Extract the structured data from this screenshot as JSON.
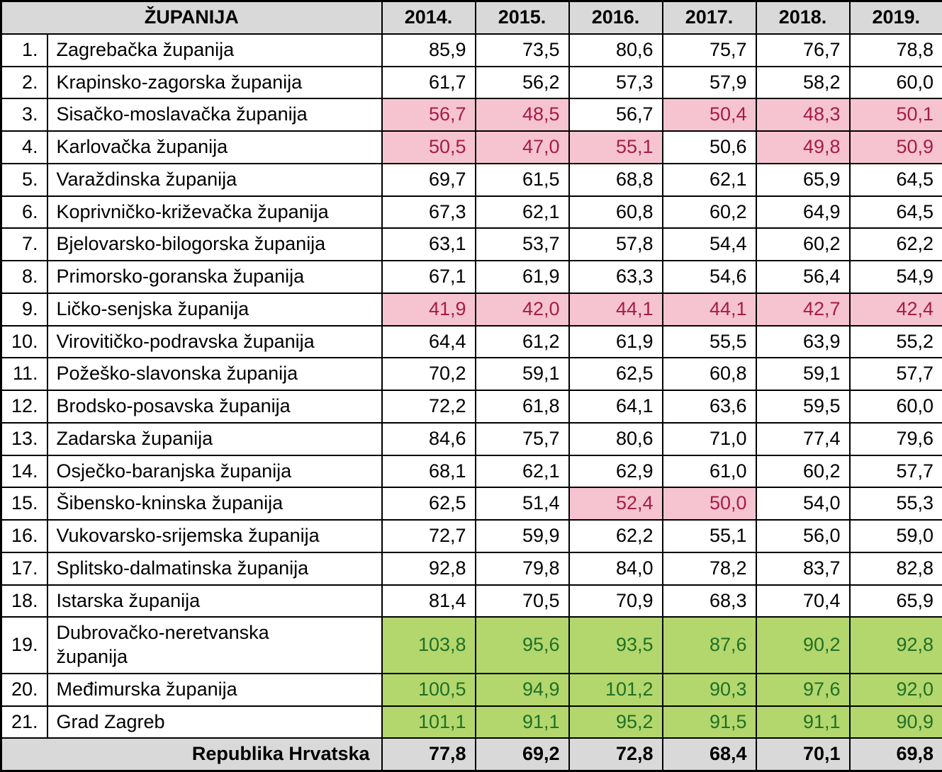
{
  "colors": {
    "header_bg": "#d9d9d9",
    "footer_bg": "#d9d9d9",
    "low_bg": "#f6c4d1",
    "low_text": "#a61c45",
    "high_bg": "#b3d76d",
    "high_text": "#1f7026",
    "border": "#000000"
  },
  "table": {
    "header": {
      "county": "ŽUPANIJA",
      "years": [
        "2014.",
        "2015.",
        "2016.",
        "2017.",
        "2018.",
        "2019."
      ]
    },
    "rows": [
      {
        "num": "1.",
        "name": "Zagrebačka županija",
        "values": [
          "85,9",
          "73,5",
          "80,6",
          "75,7",
          "76,7",
          "78,8"
        ],
        "highlights": [
          "",
          "",
          "",
          "",
          "",
          ""
        ]
      },
      {
        "num": "2.",
        "name": "Krapinsko-zagorska županija",
        "values": [
          "61,7",
          "56,2",
          "57,3",
          "57,9",
          "58,2",
          "60,0"
        ],
        "highlights": [
          "",
          "",
          "",
          "",
          "",
          ""
        ]
      },
      {
        "num": "3.",
        "name": "Sisačko-moslavačka županija",
        "values": [
          "56,7",
          "48,5",
          "56,7",
          "50,4",
          "48,3",
          "50,1"
        ],
        "highlights": [
          "low",
          "low",
          "",
          "low",
          "low",
          "low"
        ]
      },
      {
        "num": "4.",
        "name": "Karlovačka županija",
        "values": [
          "50,5",
          "47,0",
          "55,1",
          "50,6",
          "49,8",
          "50,9"
        ],
        "highlights": [
          "low",
          "low",
          "low",
          "",
          "low",
          "low"
        ]
      },
      {
        "num": "5.",
        "name": "Varaždinska županija",
        "values": [
          "69,7",
          "61,5",
          "68,8",
          "62,1",
          "65,9",
          "64,5"
        ],
        "highlights": [
          "",
          "",
          "",
          "",
          "",
          ""
        ]
      },
      {
        "num": "6.",
        "name": "Koprivničko-križevačka županija",
        "values": [
          "67,3",
          "62,1",
          "60,8",
          "60,2",
          "64,9",
          "64,5"
        ],
        "highlights": [
          "",
          "",
          "",
          "",
          "",
          ""
        ]
      },
      {
        "num": "7.",
        "name": "Bjelovarsko-bilogorska županija",
        "values": [
          "63,1",
          "53,7",
          "57,8",
          "54,4",
          "60,2",
          "62,2"
        ],
        "highlights": [
          "",
          "",
          "",
          "",
          "",
          ""
        ]
      },
      {
        "num": "8.",
        "name": "Primorsko-goranska županija",
        "values": [
          "67,1",
          "61,9",
          "63,3",
          "54,6",
          "56,4",
          "54,9"
        ],
        "highlights": [
          "",
          "",
          "",
          "",
          "",
          ""
        ]
      },
      {
        "num": "9.",
        "name": "Ličko-senjska županija",
        "values": [
          "41,9",
          "42,0",
          "44,1",
          "44,1",
          "42,7",
          "42,4"
        ],
        "highlights": [
          "low",
          "low",
          "low",
          "low",
          "low",
          "low"
        ]
      },
      {
        "num": "10.",
        "name": "Virovitičko-podravska županija",
        "values": [
          "64,4",
          "61,2",
          "61,9",
          "55,5",
          "63,9",
          "55,2"
        ],
        "highlights": [
          "",
          "",
          "",
          "",
          "",
          ""
        ]
      },
      {
        "num": "11.",
        "name": "Požeško-slavonska županija",
        "values": [
          "70,2",
          "59,1",
          "62,5",
          "60,8",
          "59,1",
          "57,7"
        ],
        "highlights": [
          "",
          "",
          "",
          "",
          "",
          ""
        ]
      },
      {
        "num": "12.",
        "name": "Brodsko-posavska županija",
        "values": [
          "72,2",
          "61,8",
          "64,1",
          "63,6",
          "59,5",
          "60,0"
        ],
        "highlights": [
          "",
          "",
          "",
          "",
          "",
          ""
        ]
      },
      {
        "num": "13.",
        "name": "Zadarska županija",
        "values": [
          "84,6",
          "75,7",
          "80,6",
          "71,0",
          "77,4",
          "79,6"
        ],
        "highlights": [
          "",
          "",
          "",
          "",
          "",
          ""
        ]
      },
      {
        "num": "14.",
        "name": "Osječko-baranjska županija",
        "values": [
          "68,1",
          "62,1",
          "62,9",
          "61,0",
          "60,2",
          "57,7"
        ],
        "highlights": [
          "",
          "",
          "",
          "",
          "",
          ""
        ]
      },
      {
        "num": "15.",
        "name": "Šibensko-kninska županija",
        "values": [
          "62,5",
          "51,4",
          "52,4",
          "50,0",
          "54,0",
          "55,3"
        ],
        "highlights": [
          "",
          "",
          "low",
          "low",
          "",
          ""
        ]
      },
      {
        "num": "16.",
        "name": "Vukovarsko-srijemska županija",
        "values": [
          "72,7",
          "59,9",
          "62,2",
          "55,1",
          "56,0",
          "59,0"
        ],
        "highlights": [
          "",
          "",
          "",
          "",
          "",
          ""
        ]
      },
      {
        "num": "17.",
        "name": "Splitsko-dalmatinska županija",
        "values": [
          "92,8",
          "79,8",
          "84,0",
          "78,2",
          "83,7",
          "82,8"
        ],
        "highlights": [
          "",
          "",
          "",
          "",
          "",
          ""
        ]
      },
      {
        "num": "18.",
        "name": "Istarska županija",
        "values": [
          "81,4",
          "70,5",
          "70,9",
          "68,3",
          "70,4",
          "65,9"
        ],
        "highlights": [
          "",
          "",
          "",
          "",
          "",
          ""
        ]
      },
      {
        "num": "19.",
        "name": "Dubrovačko-neretvanska\nžupanija",
        "values": [
          "103,8",
          "95,6",
          "93,5",
          "87,6",
          "90,2",
          "92,8"
        ],
        "highlights": [
          "high",
          "high",
          "high",
          "high",
          "high",
          "high"
        ]
      },
      {
        "num": "20.",
        "name": "Međimurska županija",
        "values": [
          "100,5",
          "94,9",
          "101,2",
          "90,3",
          "97,6",
          "92,0"
        ],
        "highlights": [
          "high",
          "high",
          "high",
          "high",
          "high",
          "high"
        ]
      },
      {
        "num": "21.",
        "name": "Grad Zagreb",
        "values": [
          "101,1",
          "91,1",
          "95,2",
          "91,5",
          "91,1",
          "90,9"
        ],
        "highlights": [
          "high",
          "high",
          "high",
          "high",
          "high",
          "high"
        ]
      }
    ],
    "footer": {
      "label": "Republika Hrvatska",
      "values": [
        "77,8",
        "69,2",
        "72,8",
        "68,4",
        "70,1",
        "69,8"
      ]
    }
  }
}
